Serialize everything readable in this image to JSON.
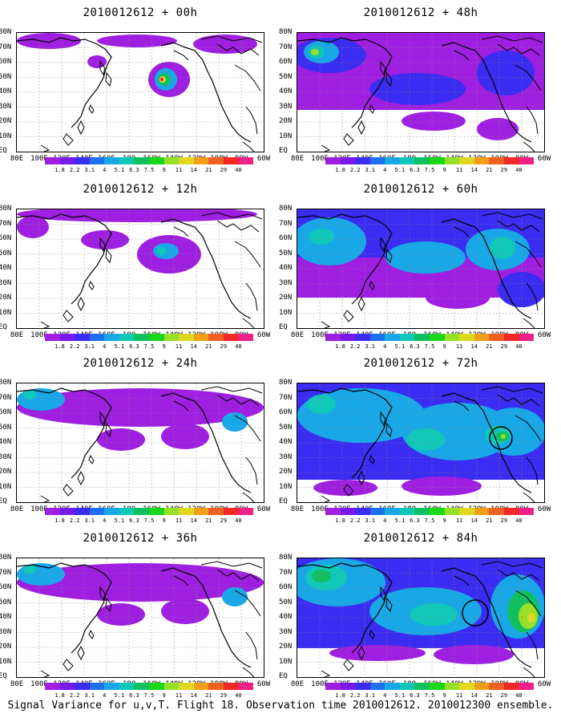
{
  "panels": [
    {
      "title": "2010012612 + 00h",
      "level": 0
    },
    {
      "title": "2010012612 + 48h",
      "level": 3
    },
    {
      "title": "2010012612 + 12h",
      "level": 1
    },
    {
      "title": "2010012612 + 60h",
      "level": 4
    },
    {
      "title": "2010012612 + 24h",
      "level": 2
    },
    {
      "title": "2010012612 + 72h",
      "level": 5
    },
    {
      "title": "2010012612 + 36h",
      "level": 2
    },
    {
      "title": "2010012612 + 84h",
      "level": 6
    }
  ],
  "y_labels": [
    "80N",
    "70N",
    "60N",
    "50N",
    "40N",
    "30N",
    "20N",
    "10N",
    "EQ"
  ],
  "x_labels": [
    "80E",
    "100E",
    "120E",
    "140E",
    "160E",
    "180",
    "160W",
    "140W",
    "120W",
    "100W",
    "80W",
    "60W"
  ],
  "colorbar": {
    "labels": [
      "1.8",
      "2.2",
      "3.1",
      "4",
      "5.1",
      "6.3",
      "7.5",
      "9",
      "11",
      "14",
      "21",
      "29",
      "40"
    ],
    "colors": [
      "#9f1fe0",
      "#7a18e8",
      "#3a2cf0",
      "#1e70f0",
      "#18a8e8",
      "#10c8b8",
      "#10c060",
      "#18d818",
      "#98e028",
      "#e0d820",
      "#f0a018",
      "#f06020",
      "#f02828",
      "#f0208a"
    ]
  },
  "caption": "Signal Variance for u,v,T. Flight 18. Observation time 2010012612. 2010012300 ensemble."
}
